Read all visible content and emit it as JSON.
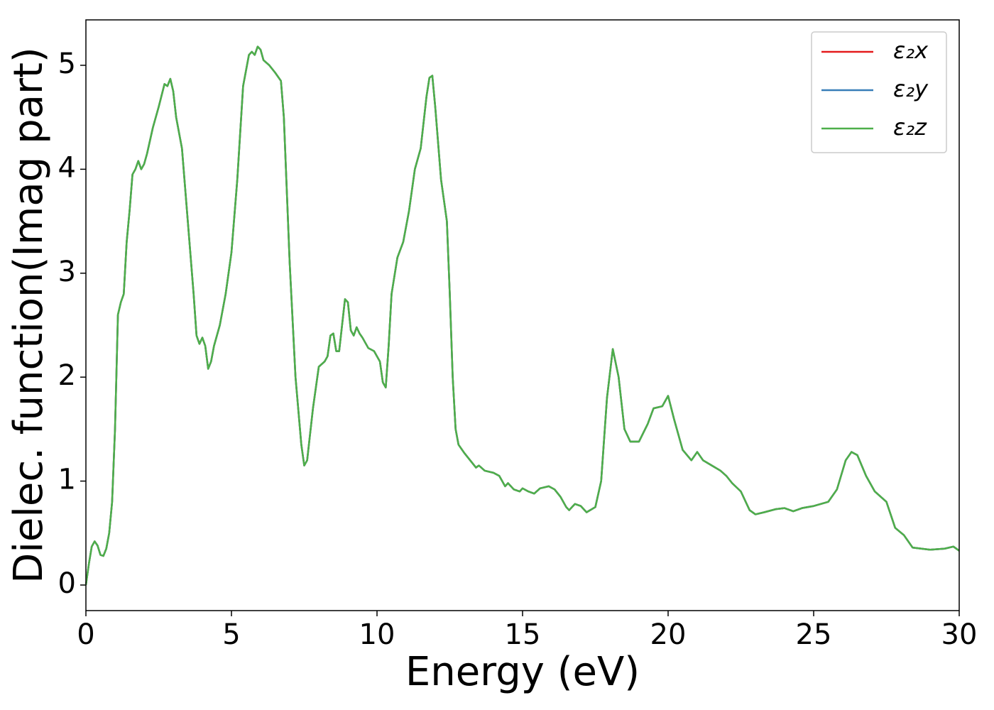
{
  "chart_data": {
    "type": "line",
    "xlabel": "Energy (eV)",
    "ylabel": "Dielec. function(Imag part)",
    "xlim": [
      0,
      30
    ],
    "ylim": [
      -0.246,
      5.437
    ],
    "xticks": [
      0,
      5,
      10,
      15,
      20,
      25,
      30
    ],
    "yticks": [
      0,
      1,
      2,
      3,
      4,
      5
    ],
    "legend": "upper right",
    "x": [
      0,
      0.1,
      0.2,
      0.3,
      0.4,
      0.5,
      0.6,
      0.7,
      0.8,
      0.9,
      1.0,
      1.1,
      1.2,
      1.3,
      1.4,
      1.5,
      1.6,
      1.7,
      1.8,
      1.9,
      2.0,
      2.1,
      2.3,
      2.5,
      2.7,
      2.8,
      2.9,
      3.0,
      3.1,
      3.3,
      3.5,
      3.7,
      3.8,
      3.9,
      4.0,
      4.1,
      4.2,
      4.3,
      4.4,
      4.6,
      4.8,
      5.0,
      5.2,
      5.4,
      5.6,
      5.7,
      5.8,
      5.9,
      6.0,
      6.1,
      6.3,
      6.5,
      6.7,
      6.8,
      6.9,
      7.0,
      7.2,
      7.4,
      7.5,
      7.6,
      7.8,
      8.0,
      8.2,
      8.3,
      8.4,
      8.5,
      8.6,
      8.7,
      8.8,
      8.9,
      9.0,
      9.1,
      9.2,
      9.3,
      9.4,
      9.5,
      9.7,
      9.9,
      10.1,
      10.2,
      10.3,
      10.4,
      10.5,
      10.7,
      10.9,
      11.1,
      11.3,
      11.5,
      11.7,
      11.8,
      11.9,
      12.0,
      12.2,
      12.4,
      12.5,
      12.6,
      12.7,
      12.8,
      13.0,
      13.2,
      13.4,
      13.5,
      13.7,
      14.0,
      14.2,
      14.4,
      14.5,
      14.7,
      14.9,
      15.0,
      15.2,
      15.4,
      15.6,
      15.9,
      16.1,
      16.3,
      16.5,
      16.6,
      16.8,
      17.0,
      17.2,
      17.5,
      17.7,
      17.9,
      18.1,
      18.3,
      18.5,
      18.7,
      19.0,
      19.3,
      19.5,
      19.8,
      20.0,
      20.2,
      20.5,
      20.8,
      21.0,
      21.2,
      21.5,
      21.8,
      22.0,
      22.2,
      22.5,
      22.8,
      23.0,
      23.3,
      23.7,
      24.0,
      24.3,
      24.6,
      25.0,
      25.5,
      25.8,
      26.1,
      26.3,
      26.5,
      26.8,
      27.1,
      27.5,
      27.8,
      28.1,
      28.4,
      28.7,
      29.0,
      29.5,
      29.8,
      30.0
    ],
    "series": [
      {
        "name": "ε₂x",
        "color": "#e41a1c",
        "values": [
          0,
          0.2,
          0.37,
          0.42,
          0.38,
          0.29,
          0.28,
          0.35,
          0.5,
          0.8,
          1.5,
          2.6,
          2.72,
          2.8,
          3.3,
          3.6,
          3.95,
          4.0,
          4.08,
          4.0,
          4.05,
          4.15,
          4.4,
          4.6,
          4.82,
          4.8,
          4.87,
          4.75,
          4.5,
          4.2,
          3.5,
          2.8,
          2.4,
          2.32,
          2.38,
          2.3,
          2.08,
          2.15,
          2.3,
          2.5,
          2.8,
          3.2,
          3.9,
          4.8,
          5.1,
          5.13,
          5.1,
          5.18,
          5.15,
          5.05,
          5.0,
          4.93,
          4.85,
          4.5,
          3.8,
          3.1,
          2.0,
          1.35,
          1.15,
          1.2,
          1.7,
          2.1,
          2.15,
          2.2,
          2.4,
          2.42,
          2.25,
          2.25,
          2.5,
          2.75,
          2.72,
          2.45,
          2.4,
          2.48,
          2.42,
          2.38,
          2.28,
          2.25,
          2.15,
          1.95,
          1.9,
          2.3,
          2.8,
          3.15,
          3.3,
          3.6,
          4.0,
          4.2,
          4.7,
          4.88,
          4.9,
          4.6,
          3.9,
          3.5,
          2.8,
          2.0,
          1.5,
          1.35,
          1.27,
          1.2,
          1.13,
          1.15,
          1.1,
          1.08,
          1.05,
          0.95,
          0.98,
          0.92,
          0.9,
          0.93,
          0.9,
          0.88,
          0.93,
          0.95,
          0.92,
          0.85,
          0.75,
          0.72,
          0.78,
          0.76,
          0.7,
          0.75,
          1.0,
          1.8,
          2.27,
          2.0,
          1.5,
          1.38,
          1.38,
          1.55,
          1.7,
          1.72,
          1.82,
          1.6,
          1.3,
          1.2,
          1.28,
          1.2,
          1.15,
          1.1,
          1.05,
          0.98,
          0.9,
          0.72,
          0.68,
          0.7,
          0.73,
          0.74,
          0.71,
          0.74,
          0.76,
          0.8,
          0.92,
          1.2,
          1.28,
          1.25,
          1.05,
          0.9,
          0.8,
          0.55,
          0.48,
          0.36,
          0.35,
          0.34,
          0.35,
          0.37,
          0.33
        ]
      },
      {
        "name": "ε₂y",
        "color": "#377eb8",
        "values": [
          0,
          0.2,
          0.37,
          0.42,
          0.38,
          0.29,
          0.28,
          0.35,
          0.5,
          0.8,
          1.5,
          2.6,
          2.72,
          2.8,
          3.3,
          3.6,
          3.95,
          4.0,
          4.08,
          4.0,
          4.05,
          4.15,
          4.4,
          4.6,
          4.82,
          4.8,
          4.87,
          4.75,
          4.5,
          4.2,
          3.5,
          2.8,
          2.4,
          2.32,
          2.38,
          2.3,
          2.08,
          2.15,
          2.3,
          2.5,
          2.8,
          3.2,
          3.9,
          4.8,
          5.1,
          5.13,
          5.1,
          5.18,
          5.15,
          5.05,
          5.0,
          4.93,
          4.85,
          4.5,
          3.8,
          3.1,
          2.0,
          1.35,
          1.15,
          1.2,
          1.7,
          2.1,
          2.15,
          2.2,
          2.4,
          2.42,
          2.25,
          2.25,
          2.5,
          2.75,
          2.72,
          2.45,
          2.4,
          2.48,
          2.42,
          2.38,
          2.28,
          2.25,
          2.15,
          1.95,
          1.9,
          2.3,
          2.8,
          3.15,
          3.3,
          3.6,
          4.0,
          4.2,
          4.7,
          4.88,
          4.9,
          4.6,
          3.9,
          3.5,
          2.8,
          2.0,
          1.5,
          1.35,
          1.27,
          1.2,
          1.13,
          1.15,
          1.1,
          1.08,
          1.05,
          0.95,
          0.98,
          0.92,
          0.9,
          0.93,
          0.9,
          0.88,
          0.93,
          0.95,
          0.92,
          0.85,
          0.75,
          0.72,
          0.78,
          0.76,
          0.7,
          0.75,
          1.0,
          1.8,
          2.27,
          2.0,
          1.5,
          1.38,
          1.38,
          1.55,
          1.7,
          1.72,
          1.82,
          1.6,
          1.3,
          1.2,
          1.28,
          1.2,
          1.15,
          1.1,
          1.05,
          0.98,
          0.9,
          0.72,
          0.68,
          0.7,
          0.73,
          0.74,
          0.71,
          0.74,
          0.76,
          0.8,
          0.92,
          1.2,
          1.28,
          1.25,
          1.05,
          0.9,
          0.8,
          0.55,
          0.48,
          0.36,
          0.35,
          0.34,
          0.35,
          0.37,
          0.33
        ]
      },
      {
        "name": "ε₂z",
        "color": "#4daf4a",
        "values": [
          0,
          0.2,
          0.37,
          0.42,
          0.38,
          0.29,
          0.28,
          0.35,
          0.5,
          0.8,
          1.5,
          2.6,
          2.72,
          2.8,
          3.3,
          3.6,
          3.95,
          4.0,
          4.08,
          4.0,
          4.05,
          4.15,
          4.4,
          4.6,
          4.82,
          4.8,
          4.87,
          4.75,
          4.5,
          4.2,
          3.5,
          2.8,
          2.4,
          2.32,
          2.38,
          2.3,
          2.08,
          2.15,
          2.3,
          2.5,
          2.8,
          3.2,
          3.9,
          4.8,
          5.1,
          5.13,
          5.1,
          5.18,
          5.15,
          5.05,
          5.0,
          4.93,
          4.85,
          4.5,
          3.8,
          3.1,
          2.0,
          1.35,
          1.15,
          1.2,
          1.7,
          2.1,
          2.15,
          2.2,
          2.4,
          2.42,
          2.25,
          2.25,
          2.5,
          2.75,
          2.72,
          2.45,
          2.4,
          2.48,
          2.42,
          2.38,
          2.28,
          2.25,
          2.15,
          1.95,
          1.9,
          2.3,
          2.8,
          3.15,
          3.3,
          3.6,
          4.0,
          4.2,
          4.7,
          4.88,
          4.9,
          4.6,
          3.9,
          3.5,
          2.8,
          2.0,
          1.5,
          1.35,
          1.27,
          1.2,
          1.13,
          1.15,
          1.1,
          1.08,
          1.05,
          0.95,
          0.98,
          0.92,
          0.9,
          0.93,
          0.9,
          0.88,
          0.93,
          0.95,
          0.92,
          0.85,
          0.75,
          0.72,
          0.78,
          0.76,
          0.7,
          0.75,
          1.0,
          1.8,
          2.27,
          2.0,
          1.5,
          1.38,
          1.38,
          1.55,
          1.7,
          1.72,
          1.82,
          1.6,
          1.3,
          1.2,
          1.28,
          1.2,
          1.15,
          1.1,
          1.05,
          0.98,
          0.9,
          0.72,
          0.68,
          0.7,
          0.73,
          0.74,
          0.71,
          0.74,
          0.76,
          0.8,
          0.92,
          1.2,
          1.28,
          1.25,
          1.05,
          0.9,
          0.8,
          0.55,
          0.48,
          0.36,
          0.35,
          0.34,
          0.35,
          0.37,
          0.33
        ]
      }
    ]
  }
}
